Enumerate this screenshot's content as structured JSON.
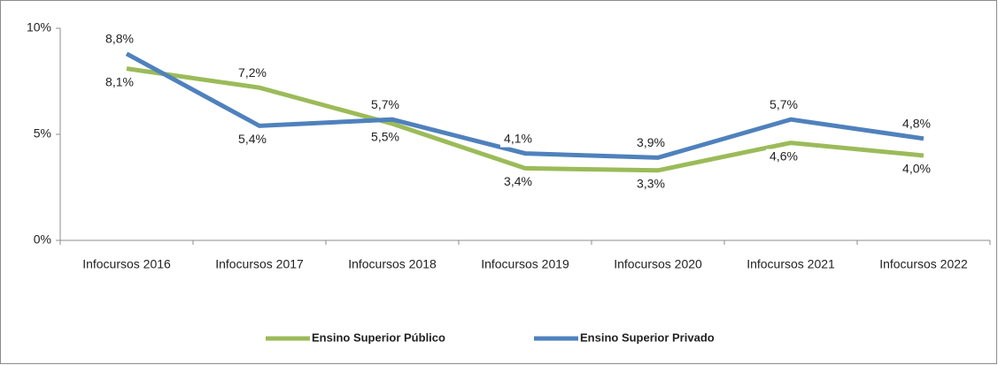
{
  "chart_data": {
    "type": "line",
    "categories": [
      "Infocursos 2016",
      "Infocursos 2017",
      "Infocursos 2018",
      "Infocursos 2019",
      "Infocursos 2020",
      "Infocursos 2021",
      "Infocursos 2022"
    ],
    "series": [
      {
        "name": "Ensino Superior Público",
        "color": "#9bbb59",
        "values": [
          8.1,
          7.2,
          5.5,
          3.4,
          3.3,
          4.6,
          4.0
        ],
        "value_labels": [
          "8,1%",
          "7,2%",
          "5,5%",
          "3,4%",
          "3,3%",
          "4,6%",
          "4,0%"
        ]
      },
      {
        "name": "Ensino Superior Privado",
        "color": "#4f81bd",
        "values": [
          8.8,
          5.4,
          5.7,
          4.1,
          3.9,
          5.7,
          4.8
        ],
        "value_labels": [
          "8,8%",
          "5,4%",
          "5,7%",
          "4,1%",
          "3,9%",
          "5,7%",
          "4,8%"
        ]
      }
    ],
    "ylim": [
      0,
      10
    ],
    "yticks": [
      {
        "value": 0,
        "label": "0%"
      },
      {
        "value": 5,
        "label": "5%"
      },
      {
        "value": 10,
        "label": "10%"
      }
    ],
    "legend": "bottom"
  }
}
